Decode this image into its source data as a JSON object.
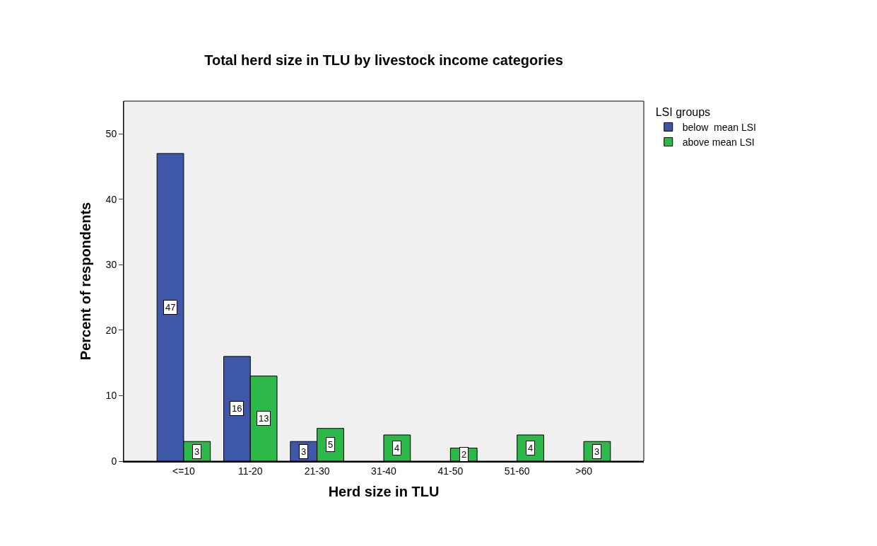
{
  "chart_data": {
    "type": "bar",
    "title": "Total herd size in TLU by livestock income categories",
    "xlabel": "Herd size in TLU",
    "ylabel": "Percent of respondents",
    "legend_title": "LSI groups",
    "categories": [
      "<=10",
      "11-20",
      "21-30",
      "31-40",
      "41-50",
      "51-60",
      ">60"
    ],
    "series": [
      {
        "name": "below  mean LSI",
        "color": "#3f57a8",
        "values": [
          47,
          16,
          3,
          null,
          null,
          null,
          null
        ],
        "value_labels": [
          "47",
          "16",
          "3",
          null,
          null,
          null,
          null
        ]
      },
      {
        "name": "above mean LSI",
        "color": "#2db84a",
        "values": [
          3,
          13,
          5,
          4,
          2,
          4,
          3
        ],
        "value_labels": [
          "3",
          "13",
          "5",
          "4",
          "2",
          "4",
          "3"
        ]
      }
    ],
    "ylim": [
      0,
      55
    ],
    "yticks": [
      0,
      10,
      20,
      30,
      40,
      50
    ],
    "grid": false,
    "legend": "top right"
  }
}
